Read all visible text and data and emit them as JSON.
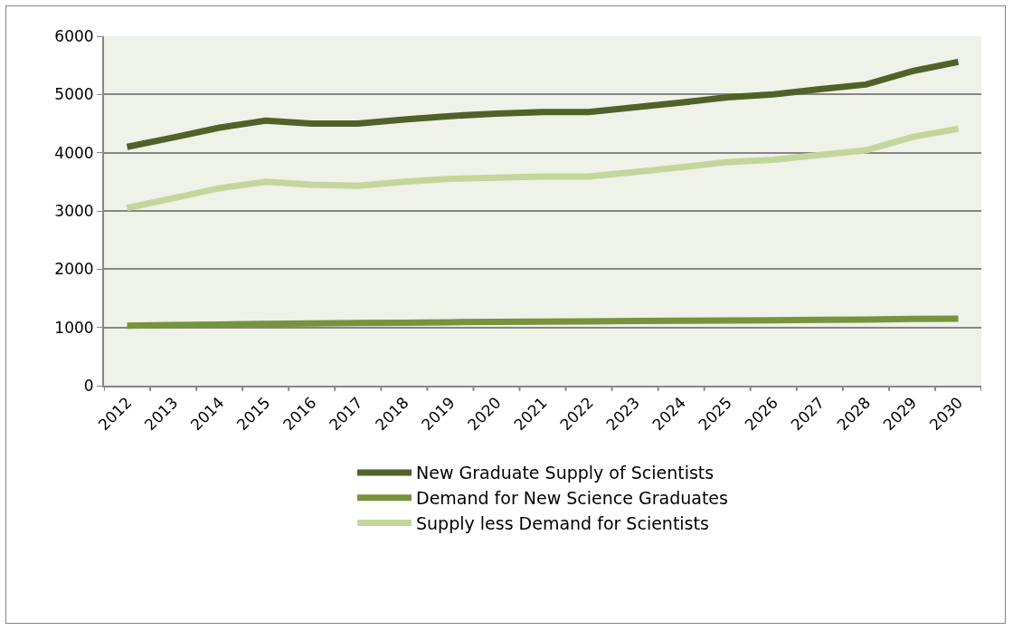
{
  "chart_data": {
    "type": "line",
    "categories": [
      "2012",
      "2013",
      "2014",
      "2015",
      "2016",
      "2017",
      "2018",
      "2019",
      "2020",
      "2021",
      "2022",
      "2023",
      "2024",
      "2025",
      "2026",
      "2027",
      "2028",
      "2029",
      "2030"
    ],
    "series": [
      {
        "name": "New Graduate Supply of Scientists",
        "color": "#4f6228",
        "values": [
          4100,
          4260,
          4430,
          4550,
          4500,
          4500,
          4570,
          4630,
          4670,
          4700,
          4700,
          4780,
          4860,
          4950,
          5000,
          5090,
          5170,
          5400,
          5560
        ]
      },
      {
        "name": "Demand for New Science Graduates",
        "color": "#77933c",
        "values": [
          1030,
          1040,
          1050,
          1060,
          1070,
          1075,
          1080,
          1090,
          1095,
          1100,
          1105,
          1110,
          1115,
          1120,
          1125,
          1130,
          1135,
          1145,
          1150
        ]
      },
      {
        "name": "Supply less Demand for Scientists",
        "color": "#c3d69b",
        "values": [
          3050,
          3220,
          3390,
          3500,
          3450,
          3430,
          3500,
          3550,
          3570,
          3590,
          3590,
          3670,
          3750,
          3840,
          3880,
          3960,
          4040,
          4270,
          4410
        ]
      }
    ],
    "ylim": [
      0,
      6000
    ],
    "yticks": [
      0,
      1000,
      2000,
      3000,
      4000,
      5000,
      6000
    ],
    "grid": "y",
    "legend": "bottom",
    "marker": "none",
    "line_style": "solid"
  }
}
